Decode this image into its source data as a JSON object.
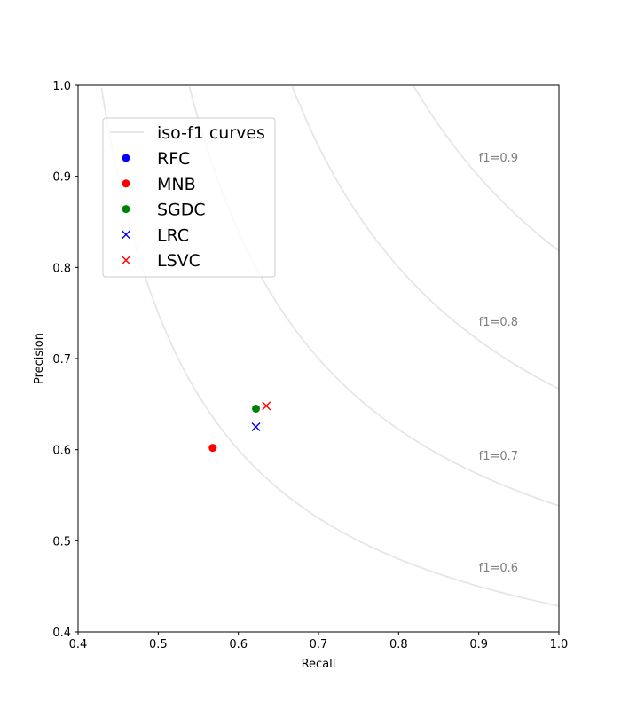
{
  "chart_data": {
    "type": "scatter",
    "title": "",
    "xlabel": "Recall",
    "ylabel": "Precision",
    "xlim": [
      0.4,
      1.0
    ],
    "ylim": [
      0.4,
      1.0
    ],
    "xticks": [
      "0.4",
      "0.5",
      "0.6",
      "0.7",
      "0.8",
      "0.9",
      "1.0"
    ],
    "yticks": [
      "0.4",
      "0.5",
      "0.6",
      "0.7",
      "0.8",
      "0.9",
      "1.0"
    ],
    "grid": false,
    "legend_position": "upper-left",
    "iso_f1": {
      "legend_label": "iso-f1 curves",
      "color": "#e6e6e6",
      "curves": [
        {
          "f1": 0.6,
          "label": "f1=0.6"
        },
        {
          "f1": 0.7,
          "label": "f1=0.7"
        },
        {
          "f1": 0.8,
          "label": "f1=0.8"
        },
        {
          "f1": 0.9,
          "label": "f1=0.9"
        }
      ],
      "label_color": "#808080"
    },
    "series": [
      {
        "name": "RFC",
        "marker": "circle",
        "color": "#0000ff",
        "points": []
      },
      {
        "name": "MNB",
        "marker": "circle",
        "color": "#ff0000",
        "points": [
          {
            "x": 0.568,
            "y": 0.602
          }
        ]
      },
      {
        "name": "SGDC",
        "marker": "circle",
        "color": "#008000",
        "points": [
          {
            "x": 0.622,
            "y": 0.645
          }
        ]
      },
      {
        "name": "LRC",
        "marker": "x",
        "color": "#0000ff",
        "points": [
          {
            "x": 0.622,
            "y": 0.625
          }
        ]
      },
      {
        "name": "LSVC",
        "marker": "x",
        "color": "#ff0000",
        "points": [
          {
            "x": 0.635,
            "y": 0.648
          }
        ]
      }
    ]
  }
}
